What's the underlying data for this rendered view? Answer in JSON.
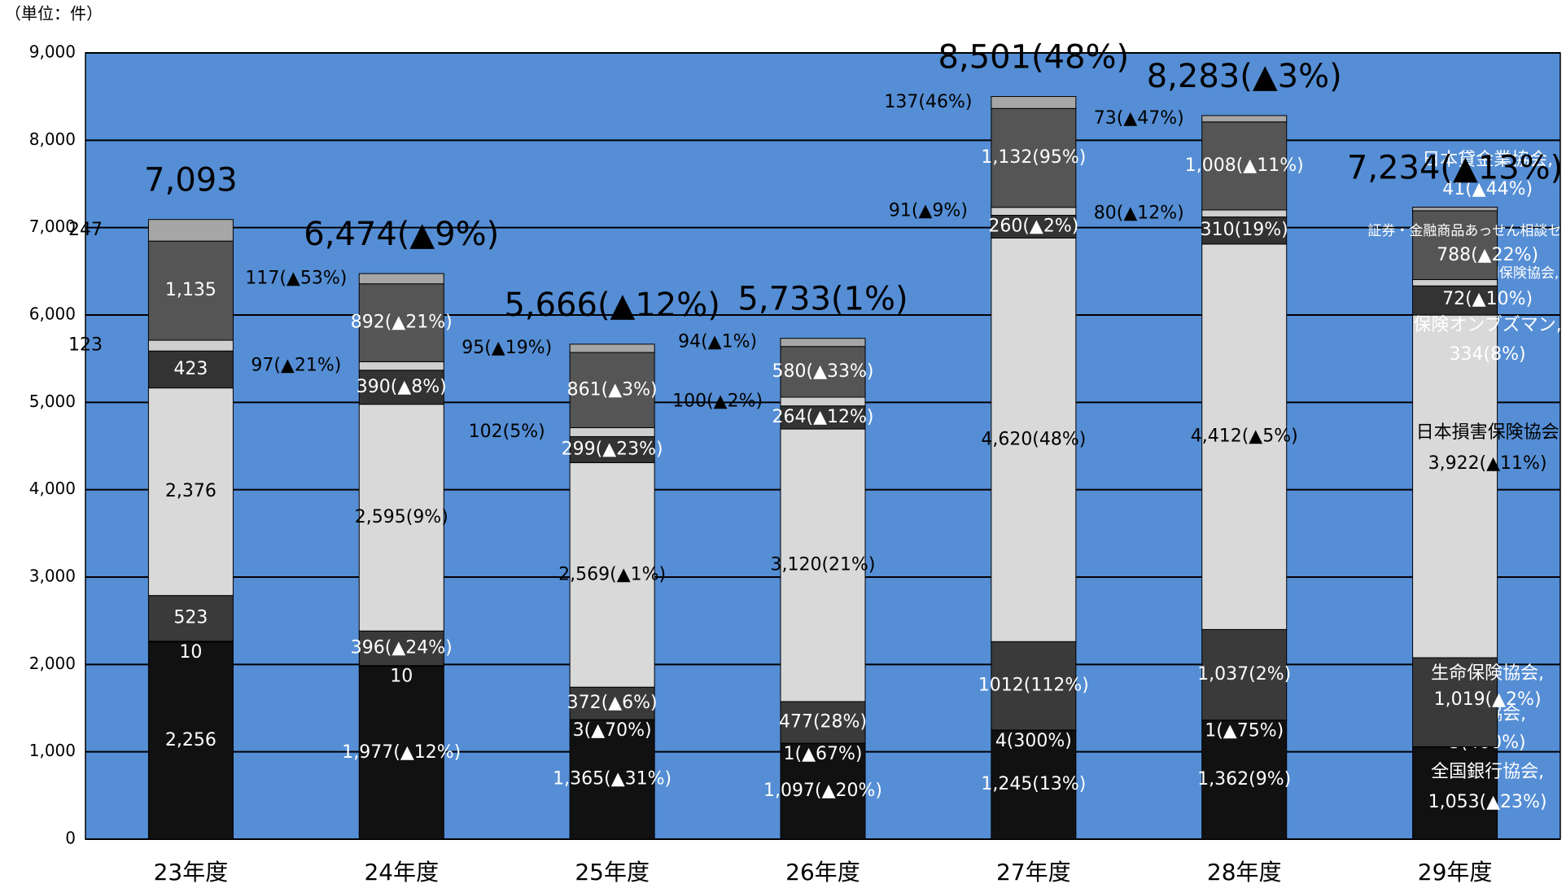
{
  "chart_data": {
    "type": "stacked_bar",
    "unit_label": "（単位：件）",
    "categories": [
      "23年度",
      "24年度",
      "25年度",
      "26年度",
      "27年度",
      "28年度",
      "29年度"
    ],
    "ylim": [
      0,
      9000
    ],
    "yticks": [
      0,
      {
        "value": 1000,
        "label": "1,000"
      },
      {
        "value": 2000,
        "label": "2,000"
      },
      {
        "value": 3000,
        "label": "3,000"
      },
      {
        "value": 4000,
        "label": "4,000"
      },
      {
        "value": 5000,
        "label": "5,000"
      },
      {
        "value": 6000,
        "label": "6,000"
      },
      {
        "value": 7000,
        "label": "7,000"
      },
      {
        "value": 8000,
        "label": "8,000"
      },
      {
        "value": 9000,
        "label": "9,000"
      }
    ],
    "grid": true,
    "background": "#558ed5",
    "series": [
      {
        "name": "全国銀行協会,",
        "color": "#111111",
        "values": [
          2256,
          1977,
          1365,
          1097,
          1245,
          1362,
          1053
        ],
        "value_labels": [
          "2,256",
          "1,977(▲12%)",
          "1,365(▲31%)",
          "1,097(▲20%)",
          "1,245(13%)",
          "1,362(9%)",
          "1,053(▲23%)"
        ]
      },
      {
        "name": "信託協会,",
        "color": "#1a1a1a",
        "values": [
          10,
          10,
          3,
          1,
          4,
          1,
          5
        ],
        "value_labels": [
          "10",
          "10",
          "3(▲70%)",
          "1(▲67%)",
          "4(300%)",
          "1(▲75%)",
          "5(400%)"
        ]
      },
      {
        "name": "生命保険協会,",
        "color": "#3a3a3a",
        "values": [
          523,
          396,
          372,
          477,
          1012,
          1037,
          1019
        ],
        "value_labels": [
          "523",
          "396(▲24%)",
          "372(▲6%)",
          "477(28%)",
          "1012(112%)",
          "1,037(2%)",
          "1,019(▲2%)"
        ]
      },
      {
        "name": "日本損害保険協会",
        "color": "#d9d9d9",
        "values": [
          2376,
          2595,
          2569,
          3120,
          4620,
          4412,
          3922
        ],
        "value_labels": [
          "2,376",
          "2,595(9%)",
          "2,569(▲1%)",
          "3,120(21%)",
          "4,620(48%)",
          "4,412(▲5%)",
          "3,922(▲11%)"
        ]
      },
      {
        "name": "保険オンブズマン,",
        "color": "#333333",
        "values": [
          423,
          390,
          299,
          264,
          260,
          310,
          334
        ],
        "value_labels": [
          "423",
          "390(▲8%)",
          "299(▲23%)",
          "264(▲12%)",
          "260(▲2%)",
          "310(19%)",
          "334(8%)"
        ]
      },
      {
        "name": "日本少額短期保険協会,",
        "color": "#cfcfcf",
        "values": [
          123,
          97,
          102,
          100,
          91,
          80,
          72
        ],
        "value_labels": [
          "123",
          "97(▲21%)",
          "102(5%)",
          "100(▲2%)",
          "91(▲9%)",
          "80(▲12%)",
          "72(▲10%)"
        ]
      },
      {
        "name": "証券・金融商品あっせん相談センター,",
        "color": "#555555",
        "values": [
          1135,
          892,
          861,
          580,
          1132,
          1008,
          788
        ],
        "value_labels": [
          "1,135",
          "892(▲21%)",
          "861(▲3%)",
          "580(▲33%)",
          "1,132(95%)",
          "1,008(▲11%)",
          "788(▲22%)"
        ]
      },
      {
        "name": "日本貸金業協会,",
        "color": "#a6a6a6",
        "values": [
          247,
          117,
          95,
          94,
          137,
          73,
          41
        ],
        "value_labels": [
          "247",
          "117(▲53%)",
          "95(▲19%)",
          "94(▲1%)",
          "137(46%)",
          "73(▲47%)",
          "41(▲44%)"
        ]
      }
    ],
    "totals": [
      7093,
      6474,
      5666,
      5733,
      8501,
      8283,
      7234
    ],
    "total_labels": [
      "7,093",
      "6,474(▲9%)",
      "5,666(▲12%)",
      "5,733(1%)",
      "8,501(48%)",
      "8,283(▲3%)",
      "7,234(▲13%)"
    ]
  }
}
